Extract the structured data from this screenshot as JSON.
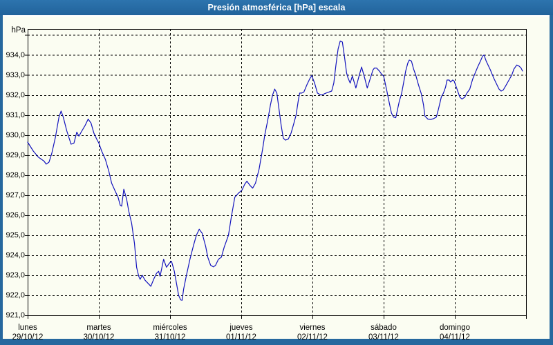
{
  "window": {
    "title": "Presión atmosférica [hPa] escala"
  },
  "colors": {
    "frame": "#26689e",
    "titlebar_text": "#ffffff",
    "content_bg": "#fbfdf2",
    "plot_border": "#000000",
    "grid": "#000000",
    "line": "#1212bd",
    "label_text": "#000000"
  },
  "chart_data": {
    "type": "line",
    "title": "Presión atmosférica [hPa] escala",
    "ylabel": "hPa",
    "xlabel": "",
    "ylim": [
      921,
      935.3
    ],
    "xlim_days": [
      0,
      7
    ],
    "grid": "dashed",
    "legend_position": "none",
    "y_ticks": [
      {
        "value": 934,
        "label": "934,0"
      },
      {
        "value": 933,
        "label": "933,0"
      },
      {
        "value": 932,
        "label": "932,0"
      },
      {
        "value": 931,
        "label": "931,0"
      },
      {
        "value": 930,
        "label": "930,0"
      },
      {
        "value": 929,
        "label": "929,0"
      },
      {
        "value": 928,
        "label": "928,0"
      },
      {
        "value": 927,
        "label": "927,0"
      },
      {
        "value": 926,
        "label": "926,0"
      },
      {
        "value": 925,
        "label": "925,0"
      },
      {
        "value": 924,
        "label": "924,0"
      },
      {
        "value": 923,
        "label": "923,0"
      },
      {
        "value": 922,
        "label": "922,0"
      },
      {
        "value": 921,
        "label": "921,0"
      }
    ],
    "x_ticks": [
      {
        "day": "lunes",
        "date": "29/10/12"
      },
      {
        "day": "martes",
        "date": "30/10/12"
      },
      {
        "day": "miércoles",
        "date": "31/10/12"
      },
      {
        "day": "jueves",
        "date": "01/11/12"
      },
      {
        "day": "viernes",
        "date": "02/11/12"
      },
      {
        "day": "sábado",
        "date": "03/11/12"
      },
      {
        "day": "domingo",
        "date": "04/11/12"
      }
    ],
    "series": [
      {
        "name": "Presión atmosférica [hPa]",
        "color": "#1212bd",
        "points": [
          [
            0.0,
            929.65
          ],
          [
            0.08,
            929.2
          ],
          [
            0.15,
            928.9
          ],
          [
            0.19,
            928.8
          ],
          [
            0.23,
            928.7
          ],
          [
            0.26,
            928.55
          ],
          [
            0.3,
            928.65
          ],
          [
            0.34,
            929.1
          ],
          [
            0.39,
            929.9
          ],
          [
            0.44,
            930.9
          ],
          [
            0.47,
            931.2
          ],
          [
            0.5,
            930.9
          ],
          [
            0.55,
            930.2
          ],
          [
            0.61,
            929.55
          ],
          [
            0.65,
            929.6
          ],
          [
            0.69,
            930.15
          ],
          [
            0.72,
            929.95
          ],
          [
            0.76,
            930.2
          ],
          [
            0.81,
            930.5
          ],
          [
            0.85,
            930.8
          ],
          [
            0.89,
            930.6
          ],
          [
            0.93,
            930.1
          ],
          [
            0.97,
            929.8
          ],
          [
            1.0,
            929.6
          ],
          [
            1.04,
            929.2
          ],
          [
            1.09,
            928.8
          ],
          [
            1.14,
            928.2
          ],
          [
            1.18,
            927.6
          ],
          [
            1.23,
            927.2
          ],
          [
            1.27,
            926.9
          ],
          [
            1.3,
            926.5
          ],
          [
            1.32,
            926.45
          ],
          [
            1.35,
            927.3
          ],
          [
            1.39,
            926.8
          ],
          [
            1.42,
            926.2
          ],
          [
            1.46,
            925.6
          ],
          [
            1.5,
            924.6
          ],
          [
            1.53,
            923.4
          ],
          [
            1.56,
            922.95
          ],
          [
            1.58,
            922.8
          ],
          [
            1.61,
            923.0
          ],
          [
            1.65,
            922.75
          ],
          [
            1.69,
            922.6
          ],
          [
            1.73,
            922.45
          ],
          [
            1.77,
            922.8
          ],
          [
            1.81,
            923.1
          ],
          [
            1.84,
            923.2
          ],
          [
            1.86,
            922.95
          ],
          [
            1.91,
            923.8
          ],
          [
            1.95,
            923.4
          ],
          [
            1.99,
            923.6
          ],
          [
            2.02,
            923.7
          ],
          [
            2.06,
            923.2
          ],
          [
            2.09,
            922.6
          ],
          [
            2.12,
            922.0
          ],
          [
            2.15,
            921.77
          ],
          [
            2.17,
            921.75
          ],
          [
            2.19,
            922.3
          ],
          [
            2.23,
            923.0
          ],
          [
            2.28,
            923.8
          ],
          [
            2.33,
            924.5
          ],
          [
            2.37,
            925.0
          ],
          [
            2.41,
            925.3
          ],
          [
            2.45,
            925.1
          ],
          [
            2.5,
            924.45
          ],
          [
            2.53,
            923.9
          ],
          [
            2.57,
            923.5
          ],
          [
            2.61,
            923.42
          ],
          [
            2.64,
            923.5
          ],
          [
            2.68,
            923.8
          ],
          [
            2.72,
            923.9
          ],
          [
            2.76,
            924.4
          ],
          [
            2.82,
            925.0
          ],
          [
            2.86,
            925.9
          ],
          [
            2.91,
            926.9
          ],
          [
            2.96,
            927.1
          ],
          [
            3.01,
            927.25
          ],
          [
            3.05,
            927.55
          ],
          [
            3.08,
            927.7
          ],
          [
            3.12,
            927.5
          ],
          [
            3.16,
            927.35
          ],
          [
            3.2,
            927.6
          ],
          [
            3.25,
            928.3
          ],
          [
            3.3,
            929.3
          ],
          [
            3.33,
            930.0
          ],
          [
            3.37,
            930.7
          ],
          [
            3.41,
            931.5
          ],
          [
            3.44,
            932.0
          ],
          [
            3.47,
            932.3
          ],
          [
            3.5,
            932.1
          ],
          [
            3.53,
            931.3
          ],
          [
            3.56,
            930.5
          ],
          [
            3.59,
            929.85
          ],
          [
            3.62,
            929.75
          ],
          [
            3.66,
            929.8
          ],
          [
            3.7,
            930.1
          ],
          [
            3.74,
            930.6
          ],
          [
            3.77,
            931.0
          ],
          [
            3.8,
            931.7
          ],
          [
            3.82,
            932.1
          ],
          [
            3.85,
            932.1
          ],
          [
            3.88,
            932.15
          ],
          [
            3.92,
            932.5
          ],
          [
            3.96,
            932.8
          ],
          [
            3.99,
            932.97
          ],
          [
            4.03,
            932.6
          ],
          [
            4.07,
            932.1
          ],
          [
            4.12,
            932.0
          ],
          [
            4.16,
            932.05
          ],
          [
            4.19,
            932.1
          ],
          [
            4.23,
            932.15
          ],
          [
            4.27,
            932.2
          ],
          [
            4.3,
            932.6
          ],
          [
            4.33,
            933.5
          ],
          [
            4.36,
            934.3
          ],
          [
            4.39,
            934.7
          ],
          [
            4.42,
            934.65
          ],
          [
            4.45,
            933.9
          ],
          [
            4.48,
            933.1
          ],
          [
            4.5,
            932.85
          ],
          [
            4.53,
            932.6
          ],
          [
            4.56,
            932.95
          ],
          [
            4.59,
            932.6
          ],
          [
            4.61,
            932.35
          ],
          [
            4.65,
            932.9
          ],
          [
            4.69,
            933.4
          ],
          [
            4.73,
            932.9
          ],
          [
            4.77,
            932.35
          ],
          [
            4.81,
            932.8
          ],
          [
            4.85,
            933.25
          ],
          [
            4.87,
            933.35
          ],
          [
            4.9,
            933.35
          ],
          [
            4.94,
            933.2
          ],
          [
            4.97,
            933.05
          ],
          [
            5.0,
            932.95
          ],
          [
            5.04,
            932.3
          ],
          [
            5.08,
            931.6
          ],
          [
            5.11,
            931.1
          ],
          [
            5.14,
            930.9
          ],
          [
            5.17,
            930.87
          ],
          [
            5.19,
            931.2
          ],
          [
            5.22,
            931.7
          ],
          [
            5.25,
            932.05
          ],
          [
            5.28,
            932.6
          ],
          [
            5.31,
            933.2
          ],
          [
            5.34,
            933.6
          ],
          [
            5.36,
            933.75
          ],
          [
            5.39,
            933.7
          ],
          [
            5.42,
            933.3
          ],
          [
            5.45,
            933.0
          ],
          [
            5.49,
            932.5
          ],
          [
            5.53,
            932.05
          ],
          [
            5.56,
            931.5
          ],
          [
            5.58,
            930.95
          ],
          [
            5.62,
            930.8
          ],
          [
            5.66,
            930.78
          ],
          [
            5.7,
            930.82
          ],
          [
            5.74,
            930.9
          ],
          [
            5.77,
            931.3
          ],
          [
            5.81,
            931.9
          ],
          [
            5.84,
            932.1
          ],
          [
            5.87,
            932.4
          ],
          [
            5.89,
            932.75
          ],
          [
            5.92,
            932.75
          ],
          [
            5.94,
            932.65
          ],
          [
            5.97,
            932.75
          ],
          [
            5.99,
            932.7
          ],
          [
            6.03,
            932.3
          ],
          [
            6.07,
            931.9
          ],
          [
            6.1,
            931.8
          ],
          [
            6.14,
            931.9
          ],
          [
            6.17,
            932.1
          ],
          [
            6.21,
            932.3
          ],
          [
            6.25,
            932.8
          ],
          [
            6.28,
            933.05
          ],
          [
            6.32,
            933.4
          ],
          [
            6.36,
            933.7
          ],
          [
            6.39,
            933.95
          ],
          [
            6.41,
            934.0
          ],
          [
            6.44,
            933.7
          ],
          [
            6.48,
            933.4
          ],
          [
            6.5,
            933.25
          ],
          [
            6.54,
            932.9
          ],
          [
            6.58,
            932.6
          ],
          [
            6.62,
            932.3
          ],
          [
            6.65,
            932.2
          ],
          [
            6.68,
            932.25
          ],
          [
            6.72,
            932.5
          ],
          [
            6.76,
            932.75
          ],
          [
            6.8,
            933.0
          ],
          [
            6.83,
            933.3
          ],
          [
            6.87,
            933.5
          ],
          [
            6.9,
            933.45
          ],
          [
            6.93,
            933.35
          ],
          [
            6.95,
            933.2
          ]
        ]
      }
    ]
  }
}
